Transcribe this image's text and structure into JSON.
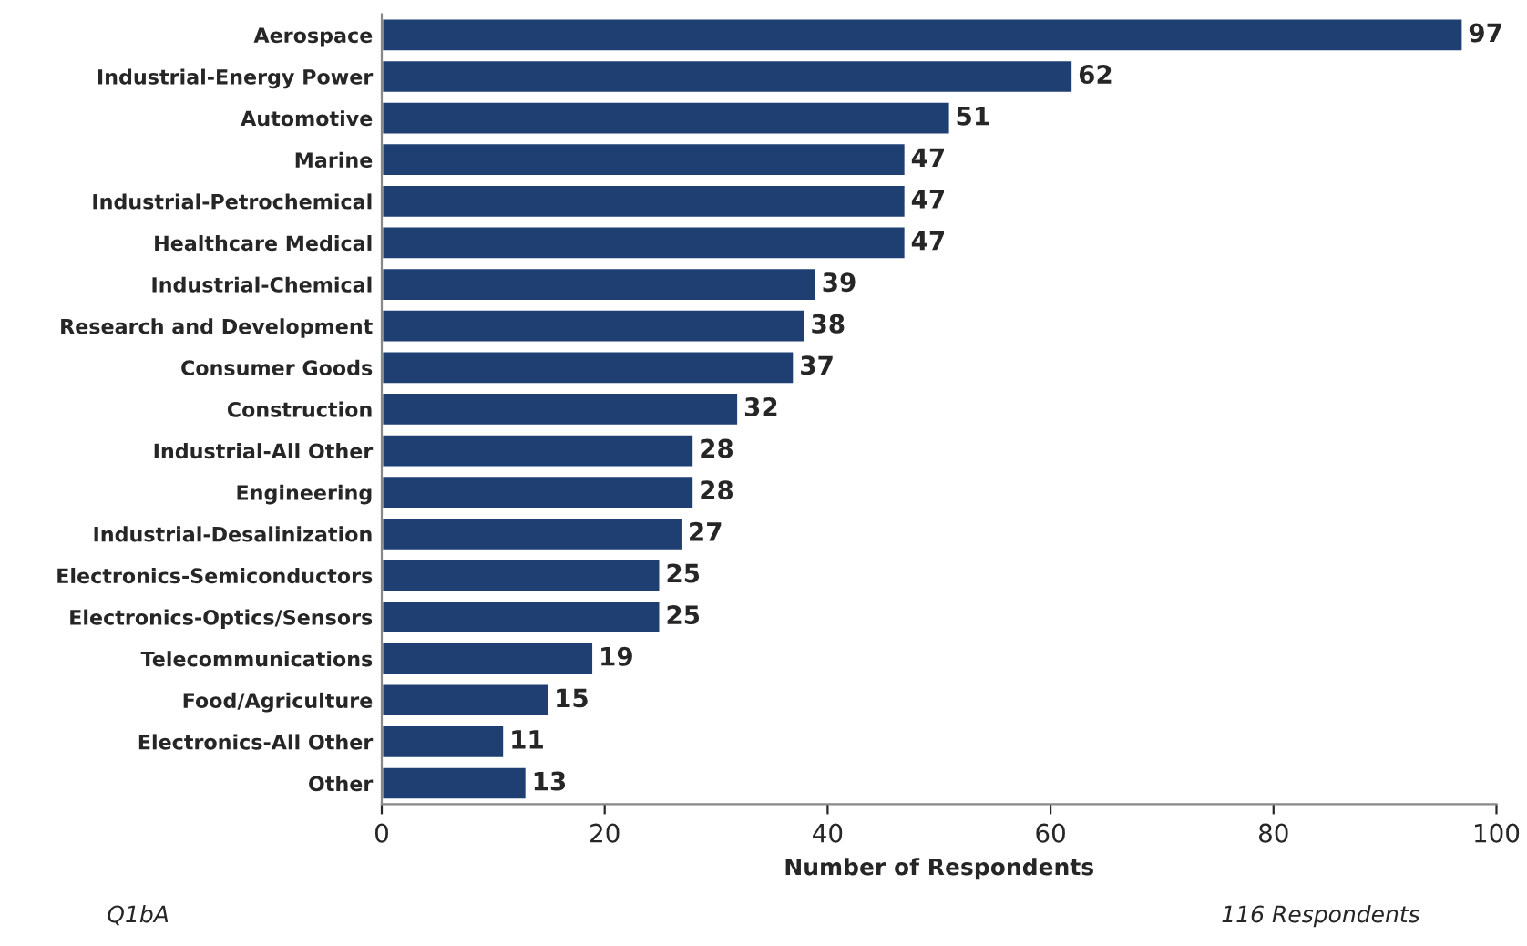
{
  "chart_data": {
    "type": "bar",
    "orientation": "horizontal",
    "xlabel": "Number of Respondents",
    "categories": [
      "Aerospace",
      "Industrial-Energy Power",
      "Automotive",
      "Marine",
      "Industrial-Petrochemical",
      "Healthcare Medical",
      "Industrial-Chemical",
      "Research and Development",
      "Consumer Goods",
      "Construction",
      "Industrial-All Other",
      "Engineering",
      "Industrial-Desalinization",
      "Electronics-Semiconductors",
      "Electronics-Optics/Sensors",
      "Telecommunications",
      "Food/Agriculture",
      "Electronics-All Other",
      "Other"
    ],
    "values": [
      97,
      62,
      51,
      47,
      47,
      47,
      39,
      38,
      37,
      32,
      28,
      28,
      27,
      25,
      25,
      19,
      15,
      11,
      13
    ],
    "color": "#1f3f73",
    "xlim": [
      0,
      100
    ],
    "xticks": [
      0,
      20,
      40,
      60,
      80,
      100
    ],
    "data_labels": true,
    "grid": false,
    "legend": false,
    "annotations": [
      "Q1bA",
      "116 Respondents"
    ]
  }
}
